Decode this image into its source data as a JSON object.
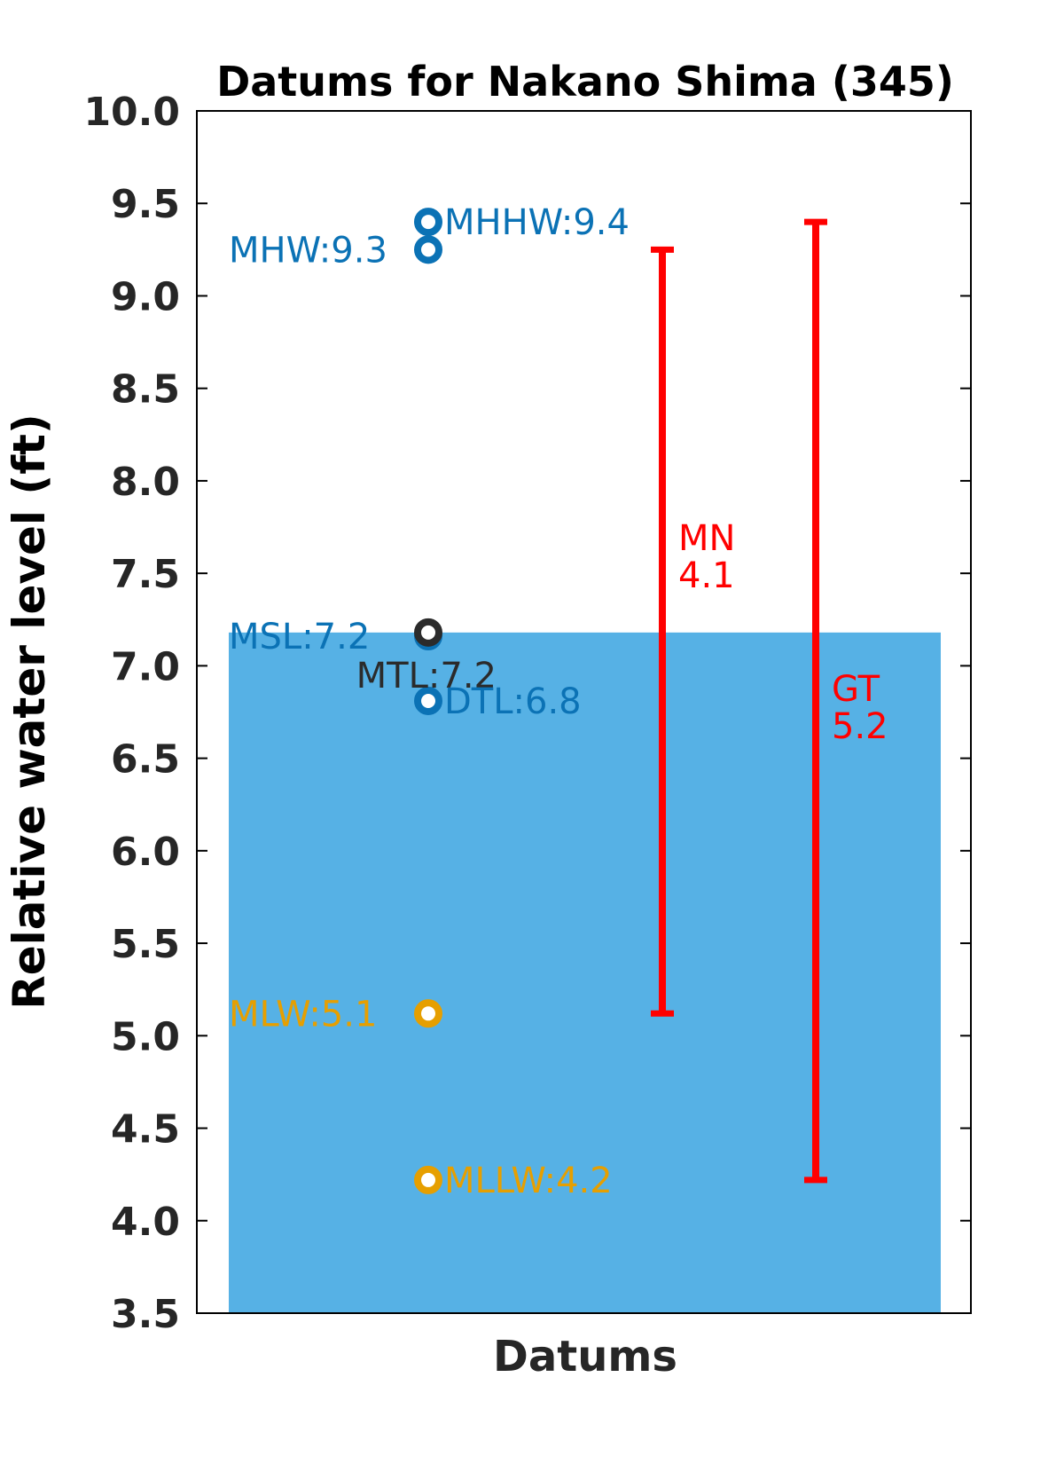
{
  "chart_data": {
    "type": "scatter",
    "title": "Datums for Nakano Shima (345)",
    "xlabel": "Datums",
    "ylabel": "Relative water level (ft)",
    "ylim": [
      3.5,
      10.0
    ],
    "y_ticks": [
      "3.5",
      "4.0",
      "4.5",
      "5.0",
      "5.5",
      "6.0",
      "6.5",
      "7.0",
      "7.5",
      "8.0",
      "8.5",
      "9.0",
      "9.5",
      "10.0"
    ],
    "grid": false,
    "background_fill": {
      "level": 7.18,
      "color": "#56b1e5"
    },
    "datums": [
      {
        "name": "MHHW",
        "value": 9.4,
        "text": "MHHW:9.4",
        "color": "#0b72b5",
        "label_side": "right"
      },
      {
        "name": "MHW",
        "value": 9.25,
        "text": "MHW:9.3",
        "color": "#0b72b5",
        "label_side": "left"
      },
      {
        "name": "MSL",
        "value": 7.16,
        "text": "MSL:7.2",
        "color": "#0b72b5",
        "label_side": "left"
      },
      {
        "name": "MTL",
        "value": 7.18,
        "text": "MTL:7.2",
        "color": "#2b2b2b",
        "label_side": "below"
      },
      {
        "name": "DTL",
        "value": 6.81,
        "text": "DTL:6.8",
        "color": "#0b72b5",
        "label_side": "right"
      },
      {
        "name": "MLW",
        "value": 5.12,
        "text": "MLW:5.1",
        "color": "#e69f00",
        "label_side": "left"
      },
      {
        "name": "MLLW",
        "value": 4.22,
        "text": "MLLW:4.2",
        "color": "#e69f00",
        "label_side": "right"
      }
    ],
    "ranges": [
      {
        "name": "MN",
        "low": 5.12,
        "high": 9.25,
        "label": "MN",
        "value_text": "4.1",
        "color": "#ff0000"
      },
      {
        "name": "GT",
        "low": 4.22,
        "high": 9.4,
        "label": "GT",
        "value_text": "5.2",
        "color": "#ff0000"
      }
    ]
  }
}
